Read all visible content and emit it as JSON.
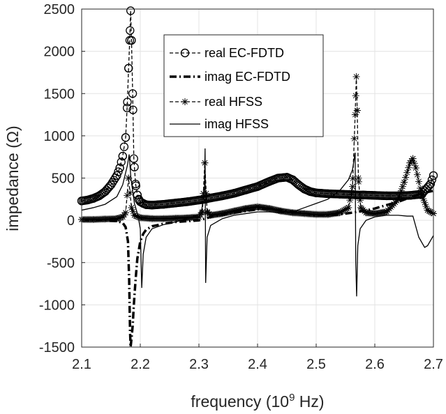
{
  "chart_data": {
    "type": "line",
    "title": "",
    "xlabel": "frequency (10^9 Hz)",
    "xlabel_main": "frequency (10",
    "xlabel_sup": "9",
    "xlabel_tail": " Hz)",
    "ylabel": "impedance (Ω)",
    "xlim": [
      2.1,
      2.7
    ],
    "ylim": [
      -1500,
      2500
    ],
    "xticks": [
      "2.1",
      "2.2",
      "2.3",
      "2.4",
      "2.5",
      "2.6",
      "2.7"
    ],
    "yticks": [
      "-1500",
      "-1000",
      "-500",
      "0",
      "500",
      "1000",
      "1500",
      "2000",
      "2500"
    ],
    "grid": true,
    "legend_position": "top-center",
    "series": [
      {
        "name": "real EC-FDTD",
        "style": "dashed-circle",
        "x": [
          2.1,
          2.11,
          2.12,
          2.13,
          2.14,
          2.15,
          2.16,
          2.165,
          2.17,
          2.175,
          2.178,
          2.18,
          2.182,
          2.1835,
          2.185,
          2.187,
          2.189,
          2.192,
          2.195,
          2.198,
          2.2,
          2.205,
          2.21,
          2.22,
          2.24,
          2.26,
          2.28,
          2.3,
          2.31,
          2.32,
          2.34,
          2.36,
          2.38,
          2.4,
          2.42,
          2.435,
          2.45,
          2.46,
          2.47,
          2.48,
          2.49,
          2.5,
          2.52,
          2.54,
          2.56,
          2.57,
          2.58,
          2.6,
          2.62,
          2.64,
          2.66,
          2.68,
          2.695,
          2.7
        ],
        "y": [
          230,
          240,
          260,
          290,
          340,
          420,
          530,
          620,
          760,
          980,
          1400,
          1800,
          2130,
          2480,
          2130,
          1500,
          730,
          430,
          300,
          240,
          220,
          200,
          185,
          180,
          190,
          205,
          220,
          240,
          250,
          265,
          290,
          320,
          360,
          400,
          460,
          500,
          510,
          480,
          420,
          370,
          340,
          325,
          315,
          310,
          305,
          300,
          300,
          295,
          290,
          290,
          295,
          310,
          430,
          530
        ]
      },
      {
        "name": "imag EC-FDTD",
        "style": "dash-dot",
        "x": [
          2.1,
          2.12,
          2.14,
          2.15,
          2.16,
          2.17,
          2.175,
          2.179,
          2.181,
          2.1825,
          2.1835,
          2.185,
          2.187,
          2.189,
          2.192,
          2.195,
          2.2,
          2.205,
          2.21,
          2.22,
          2.24,
          2.26,
          2.28,
          2.3,
          2.31,
          2.32,
          2.34,
          2.36,
          2.38,
          2.4,
          2.42,
          2.44,
          2.46,
          2.48,
          2.5,
          2.52,
          2.54,
          2.56,
          2.58,
          2.6,
          2.62,
          2.64,
          2.66,
          2.68,
          2.7
        ],
        "y": [
          0,
          0,
          0,
          -5,
          -10,
          -30,
          -80,
          -250,
          -700,
          -1300,
          -1500,
          -1400,
          -1250,
          -1000,
          -700,
          -450,
          -250,
          -160,
          -110,
          -70,
          -40,
          -20,
          -10,
          0,
          20,
          40,
          70,
          90,
          110,
          130,
          140,
          120,
          100,
          80,
          60,
          60,
          70,
          90,
          110,
          140,
          180,
          220,
          270,
          320,
          350
        ]
      },
      {
        "name": "real HFSS",
        "style": "dashed-star",
        "x": [
          2.1,
          2.12,
          2.14,
          2.16,
          2.17,
          2.175,
          2.18,
          2.185,
          2.19,
          2.2,
          2.22,
          2.24,
          2.26,
          2.28,
          2.3,
          2.306,
          2.31,
          2.314,
          2.32,
          2.34,
          2.36,
          2.38,
          2.4,
          2.42,
          2.44,
          2.46,
          2.48,
          2.5,
          2.52,
          2.54,
          2.555,
          2.562,
          2.5665,
          2.5685,
          2.57,
          2.572,
          2.576,
          2.585,
          2.6,
          2.62,
          2.64,
          2.65,
          2.66,
          2.665,
          2.67,
          2.68,
          2.69,
          2.7
        ],
        "y": [
          10,
          10,
          15,
          20,
          40,
          90,
          500,
          150,
          60,
          30,
          20,
          20,
          25,
          30,
          40,
          100,
          680,
          100,
          60,
          80,
          110,
          140,
          160,
          140,
          110,
          90,
          80,
          70,
          70,
          90,
          150,
          400,
          1250,
          1700,
          1300,
          500,
          150,
          90,
          80,
          100,
          250,
          450,
          680,
          730,
          620,
          300,
          120,
          80
        ]
      },
      {
        "name": "imag HFSS",
        "style": "solid",
        "x": [
          2.1,
          2.12,
          2.14,
          2.16,
          2.17,
          2.178,
          2.181,
          2.184,
          2.19,
          2.196,
          2.2,
          2.2025,
          2.205,
          2.21,
          2.22,
          2.24,
          2.26,
          2.28,
          2.3,
          2.305,
          2.3095,
          2.3105,
          2.3115,
          2.314,
          2.32,
          2.34,
          2.36,
          2.38,
          2.4,
          2.42,
          2.44,
          2.46,
          2.48,
          2.5,
          2.52,
          2.54,
          2.555,
          2.562,
          2.5665,
          2.5675,
          2.569,
          2.571,
          2.575,
          2.585,
          2.6,
          2.62,
          2.64,
          2.655,
          2.665,
          2.675,
          2.685,
          2.69,
          2.7
        ],
        "y": [
          120,
          150,
          190,
          280,
          420,
          650,
          780,
          500,
          200,
          60,
          -100,
          -800,
          -400,
          -200,
          -100,
          -50,
          -20,
          20,
          70,
          130,
          380,
          850,
          -740,
          -200,
          -60,
          20,
          60,
          80,
          100,
          100,
          90,
          100,
          150,
          200,
          250,
          350,
          480,
          600,
          800,
          -500,
          -900,
          -300,
          -100,
          0,
          40,
          60,
          60,
          50,
          50,
          -200,
          -320,
          -300,
          -180
        ]
      }
    ]
  }
}
